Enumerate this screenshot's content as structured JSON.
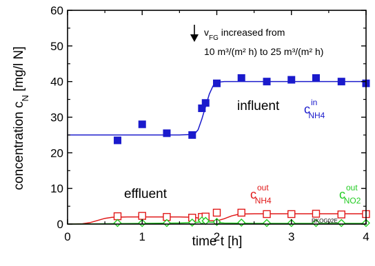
{
  "chart_data": {
    "type": "scatter",
    "xlabel": "time t [h]",
    "ylabel": "concentration c_N [mg/l N]",
    "xlim": [
      0,
      4
    ],
    "ylim": [
      0,
      60
    ],
    "x_ticks": [
      "0",
      "1",
      "2",
      "3",
      "4"
    ],
    "y_ticks": [
      "0",
      "10",
      "20",
      "30",
      "40",
      "50",
      "60"
    ],
    "grid": false,
    "legend": "none",
    "annotations": {
      "vfg_line1_main": "v",
      "vfg_line1_sub": "FG",
      "vfg_line1_rest": " increased from",
      "vfg_line2": "10 m³/(m² h) to 25 m³/(m² h)",
      "influent_label": "influent",
      "effluent_label": "effluent",
      "code": "RKOG02E"
    },
    "series": [
      {
        "label_main": "c",
        "label_sup": "in",
        "label_sub": "NH4",
        "color": "#1a1acc",
        "marker": "filled-square",
        "x": [
          0.67,
          1.0,
          1.33,
          1.67,
          1.8,
          1.85,
          2.0,
          2.33,
          2.67,
          3.0,
          3.33,
          3.67,
          4.0
        ],
        "y": [
          23.5,
          28.0,
          25.5,
          25.0,
          32.5,
          34.0,
          39.5,
          41.0,
          40.0,
          40.5,
          41.0,
          40.0,
          39.5
        ],
        "fit": {
          "x": [
            0,
            0.5,
            1.0,
            1.5,
            1.7,
            1.75,
            1.8,
            1.85,
            1.9,
            1.95,
            2.0,
            2.1,
            2.5,
            3.0,
            3.5,
            4.0
          ],
          "y": [
            25,
            25,
            25,
            25,
            25.2,
            26.5,
            29.5,
            33.0,
            36.5,
            38.8,
            39.8,
            40,
            40,
            40,
            40,
            40
          ]
        }
      },
      {
        "label_main": "c",
        "label_sup": "out",
        "label_sub": "NH4",
        "color": "#e01818",
        "marker": "open-square",
        "x": [
          0.67,
          1.0,
          1.33,
          1.67,
          1.8,
          1.85,
          2.0,
          2.33,
          2.67,
          3.0,
          3.33,
          3.67,
          4.0
        ],
        "y": [
          2.2,
          2.3,
          2.0,
          1.8,
          2.0,
          2.1,
          3.2,
          3.2,
          2.8,
          2.8,
          2.9,
          2.7,
          2.8
        ],
        "fit": {
          "x": [
            0,
            0.2,
            0.3,
            0.4,
            0.5,
            0.6,
            0.8,
            1.0,
            1.5,
            1.7,
            1.8,
            1.9,
            2.0,
            2.1,
            2.2,
            2.3,
            2.5,
            3.0,
            3.5,
            4.0
          ],
          "y": [
            0,
            0.1,
            0.4,
            1.0,
            1.6,
            1.9,
            2.0,
            2.0,
            2.0,
            1.9,
            1.5,
            1.0,
            0.9,
            1.5,
            2.3,
            2.8,
            2.9,
            2.9,
            2.9,
            2.9
          ]
        }
      },
      {
        "label_main": "c",
        "label_sup": "out",
        "label_sub": "NO2",
        "color": "#22cc22",
        "marker": "open-diamond",
        "x": [
          0.67,
          1.0,
          1.33,
          1.67,
          1.8,
          1.85,
          2.0,
          2.33,
          2.67,
          3.0,
          3.33,
          3.67,
          4.0
        ],
        "y": [
          0.3,
          0.3,
          0.3,
          0.4,
          1.0,
          0.9,
          0.6,
          0.4,
          0.3,
          0.3,
          0.3,
          0.3,
          0.3
        ],
        "fit": {
          "x": [
            0,
            0.5,
            1.0,
            1.5,
            1.75,
            1.85,
            1.95,
            2.1,
            2.5,
            3.0,
            3.5,
            4.0
          ],
          "y": [
            0,
            0.1,
            0.2,
            0.3,
            0.5,
            0.6,
            0.5,
            0.3,
            0.2,
            0.2,
            0.2,
            0.2
          ]
        }
      }
    ]
  }
}
